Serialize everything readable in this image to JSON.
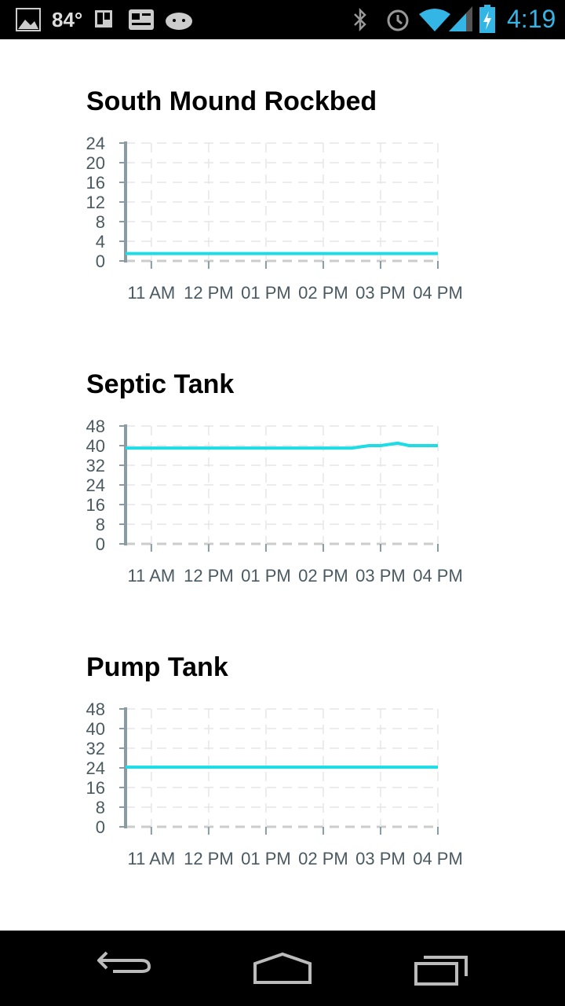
{
  "status_bar": {
    "temperature": "84°",
    "time": "4:19",
    "icons": [
      "gallery-icon",
      "trello-icon",
      "news-icon",
      "android-icon",
      "bluetooth-icon",
      "alarm-icon",
      "wifi-icon",
      "signal-icon",
      "battery-charging-icon"
    ]
  },
  "nav_bar": {
    "icons": [
      "back-icon",
      "home-icon",
      "recents-icon"
    ]
  },
  "colors": {
    "line": "#1EDCE6",
    "axis": "#8A9BA3",
    "grid": "#E6E6E6",
    "label": "#4A5A62"
  },
  "chart_data": [
    {
      "type": "line",
      "title": "South Mound Rockbed",
      "x_tick_labels": [
        "11 AM",
        "12 PM",
        "01 PM",
        "02 PM",
        "03 PM",
        "04 PM"
      ],
      "x_ticks_hours": [
        11,
        12,
        13,
        14,
        15,
        16
      ],
      "xlim_hours": [
        10.55,
        16
      ],
      "ylim": [
        0,
        24
      ],
      "y_ticks": [
        0,
        4,
        8,
        12,
        16,
        20,
        24
      ],
      "grid": true,
      "series": [
        {
          "x_hours": [
            10.55,
            16
          ],
          "values": [
            1.5,
            1.5
          ]
        }
      ]
    },
    {
      "type": "line",
      "title": "Septic Tank",
      "x_tick_labels": [
        "11 AM",
        "12 PM",
        "01 PM",
        "02 PM",
        "03 PM",
        "04 PM"
      ],
      "x_ticks_hours": [
        11,
        12,
        13,
        14,
        15,
        16
      ],
      "xlim_hours": [
        10.55,
        16
      ],
      "ylim": [
        0,
        48
      ],
      "y_ticks": [
        0,
        8,
        16,
        24,
        32,
        40,
        48
      ],
      "grid": true,
      "series": [
        {
          "x_hours": [
            10.55,
            14.5,
            14.8,
            15.0,
            15.3,
            15.5,
            16
          ],
          "values": [
            39,
            39,
            40,
            40,
            41,
            40,
            40
          ]
        }
      ]
    },
    {
      "type": "line",
      "title": "Pump Tank",
      "x_tick_labels": [
        "11 AM",
        "12 PM",
        "01 PM",
        "02 PM",
        "03 PM",
        "04 PM"
      ],
      "x_ticks_hours": [
        11,
        12,
        13,
        14,
        15,
        16
      ],
      "xlim_hours": [
        10.55,
        16
      ],
      "ylim": [
        0,
        48
      ],
      "y_ticks": [
        0,
        8,
        16,
        24,
        32,
        40,
        48
      ],
      "grid": true,
      "series": [
        {
          "x_hours": [
            10.55,
            16
          ],
          "values": [
            24.3,
            24.3
          ]
        }
      ]
    }
  ]
}
